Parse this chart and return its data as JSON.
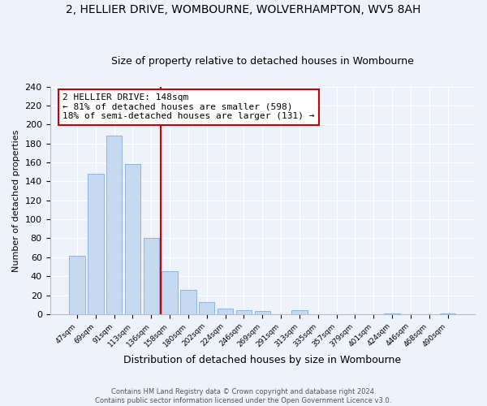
{
  "title": "2, HELLIER DRIVE, WOMBOURNE, WOLVERHAMPTON, WV5 8AH",
  "subtitle": "Size of property relative to detached houses in Wombourne",
  "xlabel": "Distribution of detached houses by size in Wombourne",
  "ylabel": "Number of detached properties",
  "bar_labels": [
    "47sqm",
    "69sqm",
    "91sqm",
    "113sqm",
    "136sqm",
    "158sqm",
    "180sqm",
    "202sqm",
    "224sqm",
    "246sqm",
    "269sqm",
    "291sqm",
    "313sqm",
    "335sqm",
    "357sqm",
    "379sqm",
    "401sqm",
    "424sqm",
    "446sqm",
    "468sqm",
    "490sqm"
  ],
  "bar_values": [
    62,
    148,
    188,
    158,
    80,
    45,
    26,
    13,
    6,
    4,
    3,
    0,
    4,
    0,
    0,
    0,
    0,
    1,
    0,
    0,
    1
  ],
  "bar_color": "#c5d9f1",
  "bar_edge_color": "#8eb4e3",
  "vline_color": "#cc0000",
  "vline_pos": 4.5,
  "annotation_title": "2 HELLIER DRIVE: 148sqm",
  "annotation_line1": "← 81% of detached houses are smaller (598)",
  "annotation_line2": "18% of semi-detached houses are larger (131) →",
  "annotation_box_color": "#ffffff",
  "annotation_box_edge": "#cc0000",
  "ylim": [
    0,
    240
  ],
  "yticks": [
    0,
    20,
    40,
    60,
    80,
    100,
    120,
    140,
    160,
    180,
    200,
    220,
    240
  ],
  "footer_line1": "Contains HM Land Registry data © Crown copyright and database right 2024.",
  "footer_line2": "Contains public sector information licensed under the Open Government Licence v3.0.",
  "bg_color": "#eef2fb",
  "plot_bg_color": "#eef2fb",
  "title_fontsize": 10,
  "subtitle_fontsize": 9,
  "grid_color": "#ffffff"
}
